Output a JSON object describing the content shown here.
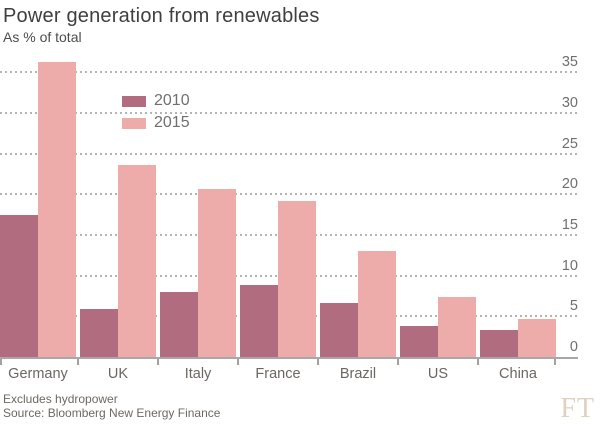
{
  "header": {
    "title": "Power generation from renewables",
    "subtitle": "As % of total"
  },
  "chart_data": {
    "type": "bar",
    "title": "Power generation from renewables",
    "subtitle": "As % of total",
    "categories": [
      "Germany",
      "UK",
      "Italy",
      "France",
      "Brazil",
      "US",
      "China"
    ],
    "series": [
      {
        "name": "2010",
        "color": "#b16c7f",
        "values": [
          17.4,
          5.9,
          8.0,
          8.8,
          6.7,
          3.8,
          3.3
        ]
      },
      {
        "name": "2015",
        "color": "#edabaa",
        "values": [
          36.3,
          23.6,
          20.7,
          19.2,
          13.0,
          7.4,
          4.7
        ]
      }
    ],
    "xlabel": "",
    "ylabel": "",
    "ylim": [
      0,
      37.5
    ],
    "yticks": [
      0,
      5,
      10,
      15,
      20,
      25,
      30,
      35
    ],
    "grid": "horizontal-dotted",
    "legend_position": "inside-upper-left",
    "yaxis_side": "right"
  },
  "colors": {
    "background": "#ffffff",
    "title_text": "#3f3f3f",
    "axis_text": "#6f6f6f",
    "gridline": "#b4b4b4",
    "baseline": "#a8a8a8",
    "series_2010": "#b16c7f",
    "series_2015": "#edabaa",
    "ft_logo": "#ddd2c0"
  },
  "footer": {
    "note": "Excludes hydropower",
    "source": "Source: Bloomberg New Energy Finance",
    "logo_text": "FT"
  }
}
